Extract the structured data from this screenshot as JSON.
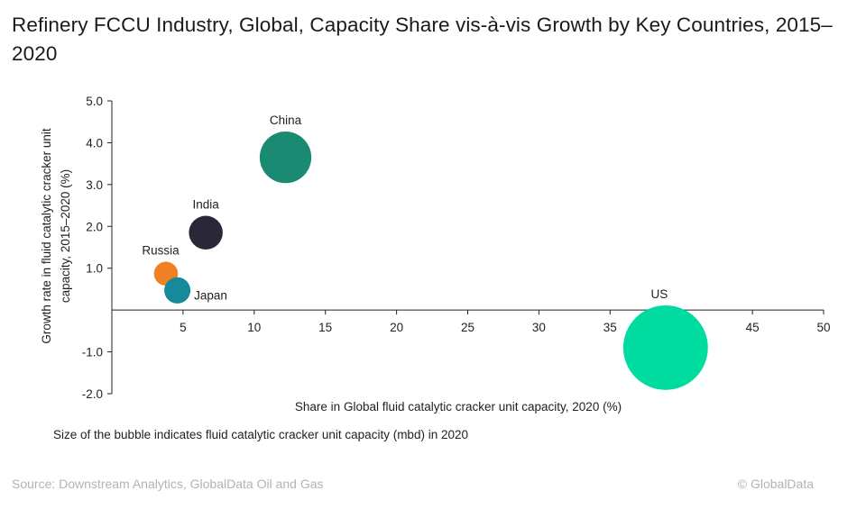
{
  "chart_data": {
    "type": "scatter",
    "title": "Refinery FCCU Industry, Global, Capacity Share vis-à-vis Growth by Key Countries, 2015–2020",
    "xlabel": "Share in Global fluid catalytic cracker unit capacity, 2020 (%)",
    "ylabel": "Growth rate in fluid catalytic cracker unit capacity, 2015–2020 (%)",
    "xlim": [
      0,
      50
    ],
    "ylim": [
      -2.0,
      5.0
    ],
    "x_ticks": [
      5,
      10,
      15,
      20,
      25,
      30,
      35,
      40,
      45,
      50
    ],
    "y_ticks": [
      -2.0,
      -1.0,
      1.0,
      2.0,
      3.0,
      4.0,
      5.0
    ],
    "y_tick_labels": [
      "-2.0",
      "-1.0",
      "1.0",
      "2.0",
      "3.0",
      "4.0",
      "5.0"
    ],
    "grid": false,
    "bubble_note": "Size of the bubble indicates fluid catalytic cracker unit capacity (mbd) in 2020",
    "points": [
      {
        "label": "China",
        "x": 12.2,
        "y": 3.65,
        "size": 3.5,
        "color": "#1a8a72"
      },
      {
        "label": "India",
        "x": 6.6,
        "y": 1.85,
        "size": 1.5,
        "color": "#2a2838"
      },
      {
        "label": "Russia",
        "x": 3.8,
        "y": 0.87,
        "size": 0.75,
        "color": "#f08024"
      },
      {
        "label": "Japan",
        "x": 4.6,
        "y": 0.47,
        "size": 0.9,
        "color": "#16899a"
      },
      {
        "label": "US",
        "x": 38.9,
        "y": -0.9,
        "size": 9.4,
        "color": "#00dba0"
      }
    ]
  },
  "footer": {
    "source": "Source: Downstream Analytics, GlobalData Oil and Gas",
    "copyright": "© GlobalData"
  }
}
